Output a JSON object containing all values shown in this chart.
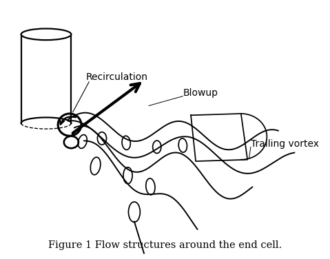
{
  "figsize": [
    4.79,
    3.76
  ],
  "dpi": 100,
  "bg_color": "#ffffff",
  "caption": "Figure 1 Flow structures around the end cell.",
  "caption_fontsize": 10.5,
  "label_recirculation": "Recirculation",
  "label_blowup": "Blowup",
  "label_trailing": "Trailing vortex",
  "line_color": "#000000",
  "line_width": 1.4,
  "arrow_lw": 3.0
}
